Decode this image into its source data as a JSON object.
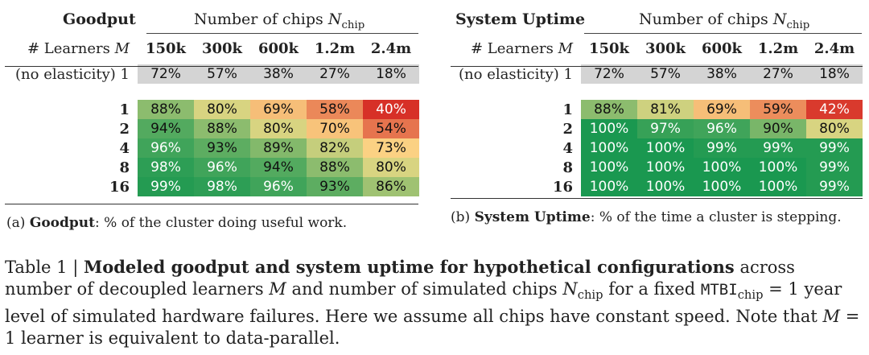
{
  "goodput": {
    "title": "Goodput",
    "chips_header": "Number of chips ",
    "chips_symbol": "N",
    "chips_sub": "chip",
    "learners_label": "# Learners ",
    "learners_symbol": "M",
    "columns": [
      "150k",
      "300k",
      "600k",
      "1.2m",
      "2.4m"
    ],
    "baseline_label": "(no elasticity) 1",
    "baseline_values": [
      "72%",
      "57%",
      "38%",
      "27%",
      "18%"
    ],
    "rows": [
      {
        "label": "1",
        "values": [
          "88%",
          "80%",
          "69%",
          "58%",
          "40%"
        ]
      },
      {
        "label": "2",
        "values": [
          "94%",
          "88%",
          "80%",
          "70%",
          "54%"
        ]
      },
      {
        "label": "4",
        "values": [
          "96%",
          "93%",
          "89%",
          "82%",
          "73%"
        ]
      },
      {
        "label": "8",
        "values": [
          "98%",
          "96%",
          "94%",
          "88%",
          "80%"
        ]
      },
      {
        "label": "16",
        "values": [
          "99%",
          "98%",
          "96%",
          "93%",
          "86%"
        ]
      }
    ],
    "caption_prefix": "(a) ",
    "caption_bold": "Goodput",
    "caption_rest": ": % of the cluster doing useful work."
  },
  "uptime": {
    "title": "System Uptime",
    "chips_header": "Number of chips ",
    "chips_symbol": "N",
    "chips_sub": "chip",
    "learners_label": "# Learners ",
    "learners_symbol": "M",
    "columns": [
      "150k",
      "300k",
      "600k",
      "1.2m",
      "2.4m"
    ],
    "baseline_label": "(no elasticity) 1",
    "baseline_values": [
      "72%",
      "57%",
      "38%",
      "27%",
      "18%"
    ],
    "rows": [
      {
        "label": "1",
        "values": [
          "88%",
          "81%",
          "69%",
          "59%",
          "42%"
        ]
      },
      {
        "label": "2",
        "values": [
          "100%",
          "97%",
          "96%",
          "90%",
          "80%"
        ]
      },
      {
        "label": "4",
        "values": [
          "100%",
          "100%",
          "99%",
          "99%",
          "99%"
        ]
      },
      {
        "label": "8",
        "values": [
          "100%",
          "100%",
          "100%",
          "100%",
          "99%"
        ]
      },
      {
        "label": "16",
        "values": [
          "100%",
          "100%",
          "100%",
          "100%",
          "99%"
        ]
      }
    ],
    "caption_prefix": "(b) ",
    "caption_bold": "System Uptime",
    "caption_rest": ": % of the time a cluster is stepping."
  },
  "caption": {
    "table_label": "Table 1 | ",
    "bold": "Modeled goodput and system uptime for hypothetical configurations",
    "part1": " across number of decoupled learners ",
    "m_symbol": "M",
    "part2": " and number of simulated chips ",
    "n_symbol": "N",
    "n_sub": "chip",
    "part3": " for a fixed ",
    "mtbi": "MTBI",
    "mtbi_sub": "chip",
    "part4": " = 1 year level of simulated hardware failures. Here we assume all chips have constant speed. Note that ",
    "m_symbol2": "M",
    "part5": " = 1 learner is equivalent to data-parallel."
  },
  "colors": {
    "baseline_bg": "#d4d4d4",
    "scale_low": "#d73027",
    "scale_mid": "#fee08b",
    "scale_high": "#1a9850"
  }
}
